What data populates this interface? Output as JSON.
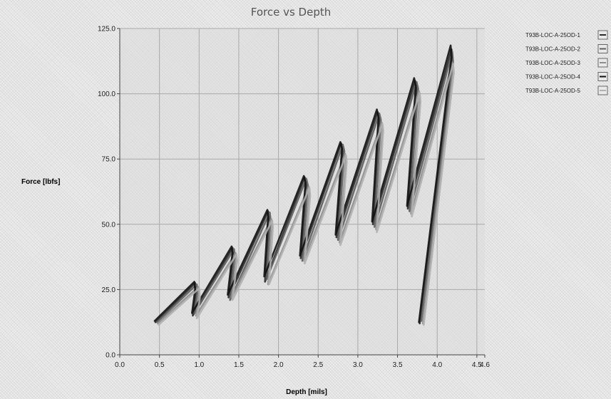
{
  "chart_data": {
    "type": "line",
    "title": "Force vs Depth",
    "xlabel": "Depth [mils]",
    "ylabel": "Force [lbfs]",
    "xlim": [
      0.0,
      4.6
    ],
    "ylim": [
      0.0,
      125.0
    ],
    "x_ticks": [
      "0.0",
      "0.5",
      "1.0",
      "1.5",
      "2.0",
      "2.5",
      "3.0",
      "3.5",
      "4.0",
      "4.5"
    ],
    "y_ticks": [
      "0.0",
      "25.0",
      "50.0",
      "75.0",
      "100.0",
      "125.0"
    ],
    "grid": true,
    "legend_position": "top-right",
    "series": [
      {
        "name": "T93B-LOC-A-25OD-1",
        "color": "#2a2a2a",
        "x": [
          0.45,
          0.95,
          0.96,
          0.92,
          1.42,
          1.43,
          1.37,
          1.87,
          1.88,
          1.83,
          2.33,
          2.35,
          2.28,
          2.79,
          2.81,
          2.73,
          3.25,
          3.27,
          3.19,
          3.72,
          3.74,
          3.63,
          4.18,
          4.19,
          3.78
        ],
        "y": [
          12.5,
          27.5,
          24,
          15,
          41,
          38,
          22,
          55,
          52,
          28,
          68,
          65,
          37,
          81,
          78,
          45,
          93,
          90,
          50,
          105,
          102,
          56,
          117,
          113,
          12
        ]
      },
      {
        "name": "T93B-LOC-A-25OD-2",
        "color": "#5e5e5e",
        "x": [
          0.47,
          0.97,
          0.98,
          0.94,
          1.44,
          1.45,
          1.39,
          1.89,
          1.9,
          1.85,
          2.35,
          2.37,
          2.3,
          2.81,
          2.83,
          2.75,
          3.27,
          3.29,
          3.21,
          3.74,
          3.76,
          3.65,
          4.19,
          4.2,
          3.8
        ],
        "y": [
          12.5,
          27,
          24,
          16,
          40.5,
          38,
          21,
          54.5,
          52,
          29,
          67.5,
          65,
          36,
          80.5,
          78,
          44,
          92.5,
          90,
          49,
          104.5,
          102,
          55,
          116,
          112,
          13
        ]
      },
      {
        "name": "T93B-LOC-A-25OD-3",
        "color": "#8e8e8e",
        "x": [
          0.48,
          0.99,
          1.0,
          0.96,
          1.46,
          1.47,
          1.41,
          1.91,
          1.92,
          1.87,
          2.38,
          2.39,
          2.32,
          2.84,
          2.85,
          2.77,
          3.3,
          3.31,
          3.23,
          3.77,
          3.78,
          3.67,
          4.19,
          4.2,
          3.82
        ],
        "y": [
          12,
          26,
          23,
          15,
          39,
          36,
          22,
          52,
          49,
          27,
          64.5,
          62,
          36,
          77,
          74,
          43,
          89,
          86,
          48,
          101,
          98,
          54,
          112,
          109,
          12
        ]
      },
      {
        "name": "T93B-LOC-A-25OD-4",
        "color": "#111111",
        "x": [
          0.44,
          0.94,
          0.95,
          0.91,
          1.41,
          1.42,
          1.36,
          1.86,
          1.87,
          1.82,
          2.32,
          2.34,
          2.27,
          2.78,
          2.8,
          2.72,
          3.24,
          3.26,
          3.18,
          3.71,
          3.73,
          3.62,
          4.17,
          4.18,
          3.77
        ],
        "y": [
          13,
          28,
          25,
          16,
          41.5,
          39,
          23,
          55.5,
          53,
          30,
          68.5,
          66,
          38,
          81.5,
          79,
          46,
          94,
          91,
          51,
          106,
          103,
          57,
          118.5,
          114,
          12.5
        ]
      },
      {
        "name": "T93B-LOC-A-25OD-5",
        "color": "#b0b0b0",
        "x": [
          0.49,
          1.0,
          1.01,
          0.97,
          1.47,
          1.48,
          1.42,
          1.92,
          1.93,
          1.88,
          2.39,
          2.4,
          2.33,
          2.85,
          2.86,
          2.78,
          3.31,
          3.32,
          3.24,
          3.78,
          3.79,
          3.68,
          4.2,
          4.21,
          3.83
        ],
        "y": [
          11.5,
          25.5,
          22,
          14,
          38.5,
          36,
          21,
          51.5,
          49,
          27,
          64,
          61,
          35,
          76.5,
          74,
          42,
          88.5,
          86,
          47,
          100.5,
          97,
          53,
          111.5,
          108,
          11.5
        ]
      }
    ]
  }
}
